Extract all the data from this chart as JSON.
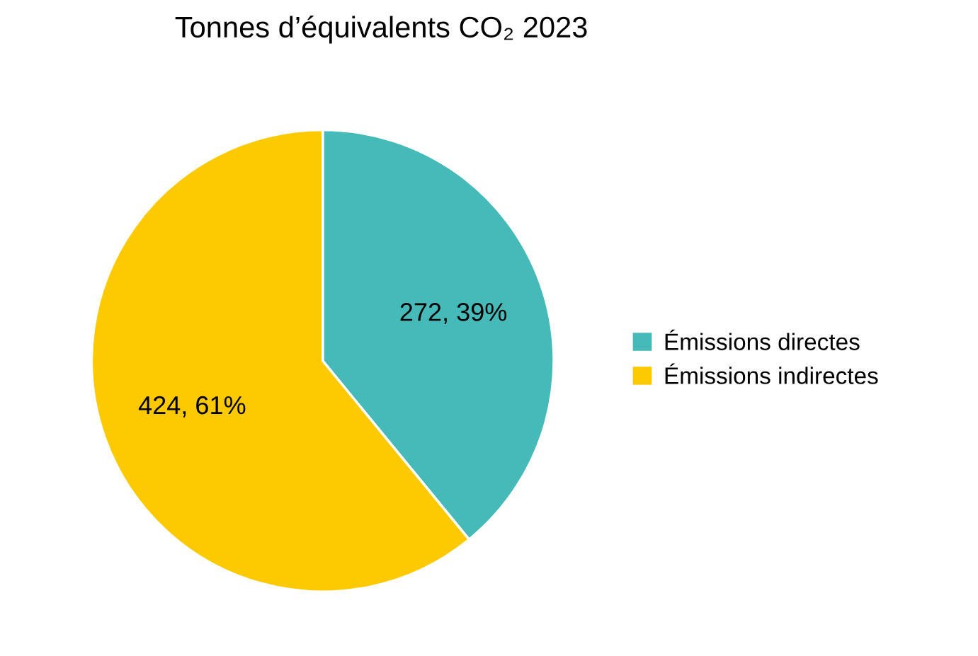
{
  "chart_data": {
    "type": "pie",
    "title": "Tonnes d’équivalents CO₂ 2023",
    "categories": [
      "Émissions directes",
      "Émissions indirectes"
    ],
    "values": [
      272,
      424
    ],
    "colors": [
      "#45bab8",
      "#fdc900"
    ],
    "value_labels": [
      "272, 39%",
      "424, 61%"
    ],
    "legend": "right"
  }
}
